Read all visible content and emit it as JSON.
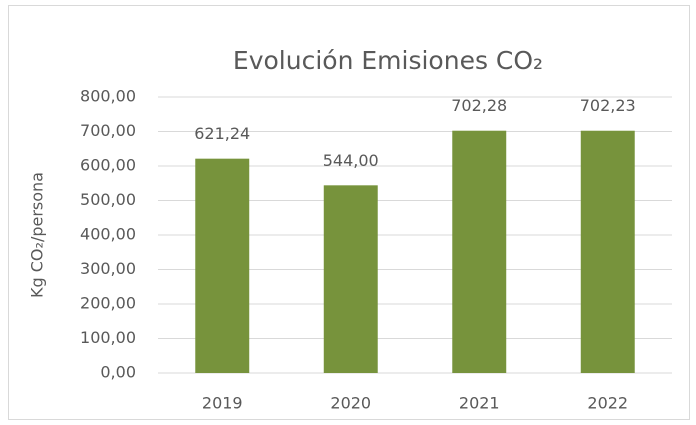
{
  "chart_data": {
    "type": "bar",
    "title": "Evolución Emisiones CO₂",
    "y_label": "Kg CO₂/persona",
    "categories": [
      "2019",
      "2020",
      "2021",
      "2022"
    ],
    "values": [
      621.24,
      544.0,
      702.28,
      702.23
    ],
    "value_labels": [
      "621,24",
      "544,00",
      "702,28",
      "702,23"
    ],
    "color": "#77933c",
    "ylim": [
      0,
      800
    ],
    "yticks": [
      {
        "value": 0,
        "label": "0,00"
      },
      {
        "value": 100,
        "label": "100,00"
      },
      {
        "value": 200,
        "label": "200,00"
      },
      {
        "value": 300,
        "label": "300,00"
      },
      {
        "value": 400,
        "label": "400,00"
      },
      {
        "value": 500,
        "label": "500,00"
      },
      {
        "value": 600,
        "label": "600,00"
      },
      {
        "value": 700,
        "label": "700,00"
      },
      {
        "value": 800,
        "label": "800,00"
      }
    ],
    "grid": true
  }
}
